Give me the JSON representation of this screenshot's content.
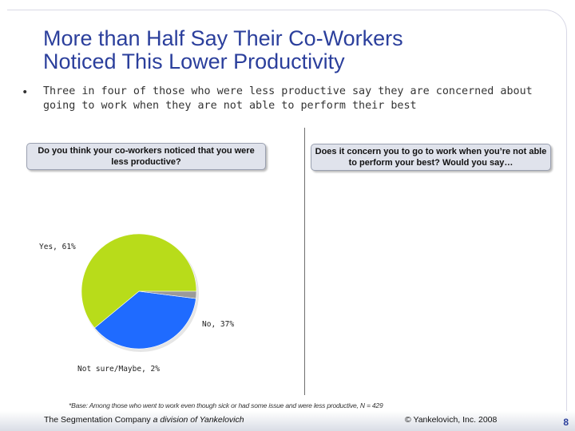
{
  "slide": {
    "title_line1": "More than Half Say Their Co-Workers",
    "title_line2": "Noticed This Lower Productivity",
    "bullet_marker": "•",
    "bullet_text": "Three in four of those who were less productive say they are concerned about going to work when they are not able to perform their best",
    "question_left": "Do you think your co-workers noticed that you were less productive?",
    "question_right": "Does it concern you to go to work when you’re not able to perform your best? Would you say…",
    "base_note": "*Base: Among those who went to work even though sick or had some issue and were less productive, N = 429",
    "footer_company": "The Segmentation Company",
    "footer_division": "a division of Yankelovich",
    "footer_copyright": "© Yankelovich, Inc. 2008",
    "page_number": "8"
  },
  "chart_data": {
    "type": "pie",
    "title": "",
    "start_angle_deg": 0,
    "direction": "counterclockwise",
    "slices": [
      {
        "label": "Yes, 61%",
        "value": 61,
        "color": "#b8dc1a"
      },
      {
        "label": "No, 37%",
        "value": 37,
        "color": "#1f6bff"
      },
      {
        "label": "Not sure/Maybe, 2%",
        "value": 2,
        "color": "#9a9a9a"
      }
    ]
  }
}
